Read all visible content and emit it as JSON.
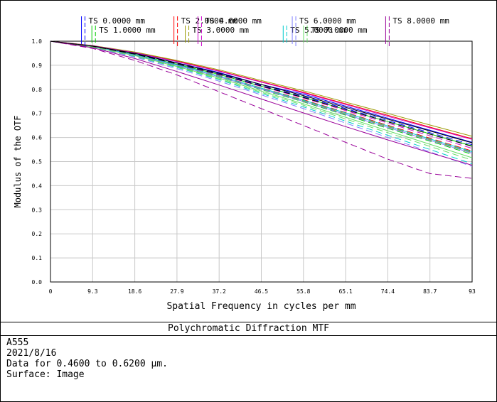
{
  "chart_data": {
    "type": "line",
    "title": "Polychromatic Diffraction MTF",
    "xlabel": "Spatial Frequency in cycles per mm",
    "ylabel": "Modulus of the OTF",
    "xlim": [
      0,
      93
    ],
    "ylim": [
      0,
      1
    ],
    "x_ticks": [
      "0",
      "9.3",
      "18.6",
      "27.9",
      "37.2",
      "46.5",
      "55.8",
      "65.1",
      "74.4",
      "83.7",
      "93"
    ],
    "y_ticks": [
      "0.0",
      "0.1",
      "0.2",
      "0.3",
      "0.4",
      "0.5",
      "0.6",
      "0.7",
      "0.8",
      "0.9",
      "1.0"
    ],
    "grid": true,
    "legend": [
      {
        "label": "TS 0.0000 mm",
        "color": "#0000ff",
        "x": 7.3
      },
      {
        "label": "TS 1.0000 mm",
        "color": "#00cc00",
        "x": 9.6
      },
      {
        "label": "TS 2.0000 mm",
        "color": "#ff0000",
        "x": 27.7
      },
      {
        "label": "TS 3.0000 mm",
        "color": "#999900",
        "x": 30.2
      },
      {
        "label": "TS 4.0000 mm",
        "color": "#cc00cc",
        "x": 33.0
      },
      {
        "label": "TS 5.0000 mm",
        "color": "#00cccc",
        "x": 51.8
      },
      {
        "label": "TS 6.0000 mm",
        "color": "#8080ff",
        "x": 53.8
      },
      {
        "label": "TS 7.0000 mm",
        "color": "#66dd66",
        "x": 56.3
      },
      {
        "label": "TS 8.0000 mm",
        "color": "#990099",
        "x": 74.4
      }
    ],
    "x": [
      0,
      9.3,
      18.6,
      27.9,
      37.2,
      46.5,
      55.8,
      65.1,
      74.4,
      83.7,
      93
    ],
    "series": [
      {
        "color": "#0000ff",
        "dash": "solid",
        "values": [
          1.0,
          0.98,
          0.95,
          0.91,
          0.87,
          0.82,
          0.78,
          0.73,
          0.68,
          0.63,
          0.58
        ]
      },
      {
        "color": "#0000ff",
        "dash": "dashed",
        "values": [
          1.0,
          0.979,
          0.947,
          0.906,
          0.864,
          0.816,
          0.77,
          0.72,
          0.67,
          0.62,
          0.57
        ]
      },
      {
        "color": "#00cc00",
        "dash": "solid",
        "values": [
          1.0,
          0.978,
          0.945,
          0.904,
          0.862,
          0.813,
          0.767,
          0.716,
          0.666,
          0.615,
          0.565
        ]
      },
      {
        "color": "#00cc00",
        "dash": "dashed",
        "values": [
          1.0,
          0.976,
          0.94,
          0.897,
          0.851,
          0.799,
          0.748,
          0.693,
          0.638,
          0.585,
          0.53
        ]
      },
      {
        "color": "#ff0000",
        "dash": "solid",
        "values": [
          1.0,
          0.981,
          0.953,
          0.917,
          0.877,
          0.832,
          0.788,
          0.74,
          0.692,
          0.643,
          0.595
        ]
      },
      {
        "color": "#ff0000",
        "dash": "dashed",
        "values": [
          1.0,
          0.978,
          0.944,
          0.902,
          0.857,
          0.806,
          0.757,
          0.704,
          0.651,
          0.597,
          0.544
        ]
      },
      {
        "color": "#999900",
        "dash": "solid",
        "values": [
          1.0,
          0.982,
          0.955,
          0.92,
          0.881,
          0.837,
          0.794,
          0.747,
          0.7,
          0.652,
          0.605
        ]
      },
      {
        "color": "#999900",
        "dash": "dashed",
        "values": [
          1.0,
          0.977,
          0.942,
          0.899,
          0.853,
          0.802,
          0.752,
          0.698,
          0.645,
          0.591,
          0.538
        ]
      },
      {
        "color": "#cc00cc",
        "dash": "solid",
        "values": [
          1.0,
          0.981,
          0.952,
          0.915,
          0.875,
          0.83,
          0.785,
          0.737,
          0.688,
          0.64,
          0.592
        ]
      },
      {
        "color": "#cc00cc",
        "dash": "dashed",
        "values": [
          1.0,
          0.979,
          0.946,
          0.905,
          0.861,
          0.812,
          0.764,
          0.712,
          0.66,
          0.607,
          0.555
        ]
      },
      {
        "color": "#00cccc",
        "dash": "solid",
        "values": [
          1.0,
          0.978,
          0.944,
          0.902,
          0.856,
          0.805,
          0.755,
          0.702,
          0.648,
          0.594,
          0.541
        ]
      },
      {
        "color": "#00cccc",
        "dash": "dashed",
        "values": [
          1.0,
          0.975,
          0.937,
          0.891,
          0.84,
          0.783,
          0.727,
          0.668,
          0.609,
          0.55,
          0.491
        ]
      },
      {
        "color": "#8080ff",
        "dash": "solid",
        "values": [
          1.0,
          0.977,
          0.942,
          0.899,
          0.852,
          0.801,
          0.75,
          0.696,
          0.642,
          0.588,
          0.535
        ]
      },
      {
        "color": "#8080ff",
        "dash": "dashed",
        "values": [
          1.0,
          0.974,
          0.934,
          0.886,
          0.834,
          0.777,
          0.72,
          0.66,
          0.6,
          0.54,
          0.48
        ]
      },
      {
        "color": "#66dd66",
        "dash": "solid",
        "values": [
          1.0,
          0.976,
          0.94,
          0.895,
          0.847,
          0.793,
          0.74,
          0.684,
          0.628,
          0.572,
          0.516
        ]
      },
      {
        "color": "#66dd66",
        "dash": "dashed",
        "values": [
          1.0,
          0.976,
          0.938,
          0.893,
          0.843,
          0.788,
          0.734,
          0.677,
          0.62,
          0.563,
          0.506
        ]
      },
      {
        "color": "#990099",
        "dash": "solid",
        "values": [
          1.0,
          0.973,
          0.928,
          0.874,
          0.818,
          0.76,
          0.702,
          0.645,
          0.59,
          0.537,
          0.485
        ]
      },
      {
        "color": "#990099",
        "dash": "dashed",
        "values": [
          1.0,
          0.97,
          0.92,
          0.86,
          0.79,
          0.72,
          0.65,
          0.58,
          0.51,
          0.45,
          0.43
        ]
      },
      {
        "color": "#000000",
        "dash": "solid",
        "values": [
          1.0,
          0.98,
          0.949,
          0.909,
          0.867,
          0.82,
          0.774,
          0.725,
          0.676,
          0.627,
          0.578
        ]
      },
      {
        "color": "#000000",
        "dash": "dashed",
        "values": [
          1.0,
          0.979,
          0.946,
          0.906,
          0.862,
          0.814,
          0.766,
          0.716,
          0.665,
          0.614,
          0.563
        ]
      }
    ]
  },
  "info": {
    "line1": "A555",
    "line2": "2021/8/16",
    "line3": "Data for 0.4600 to 0.6200 µm.",
    "line4": "Surface: Image"
  }
}
